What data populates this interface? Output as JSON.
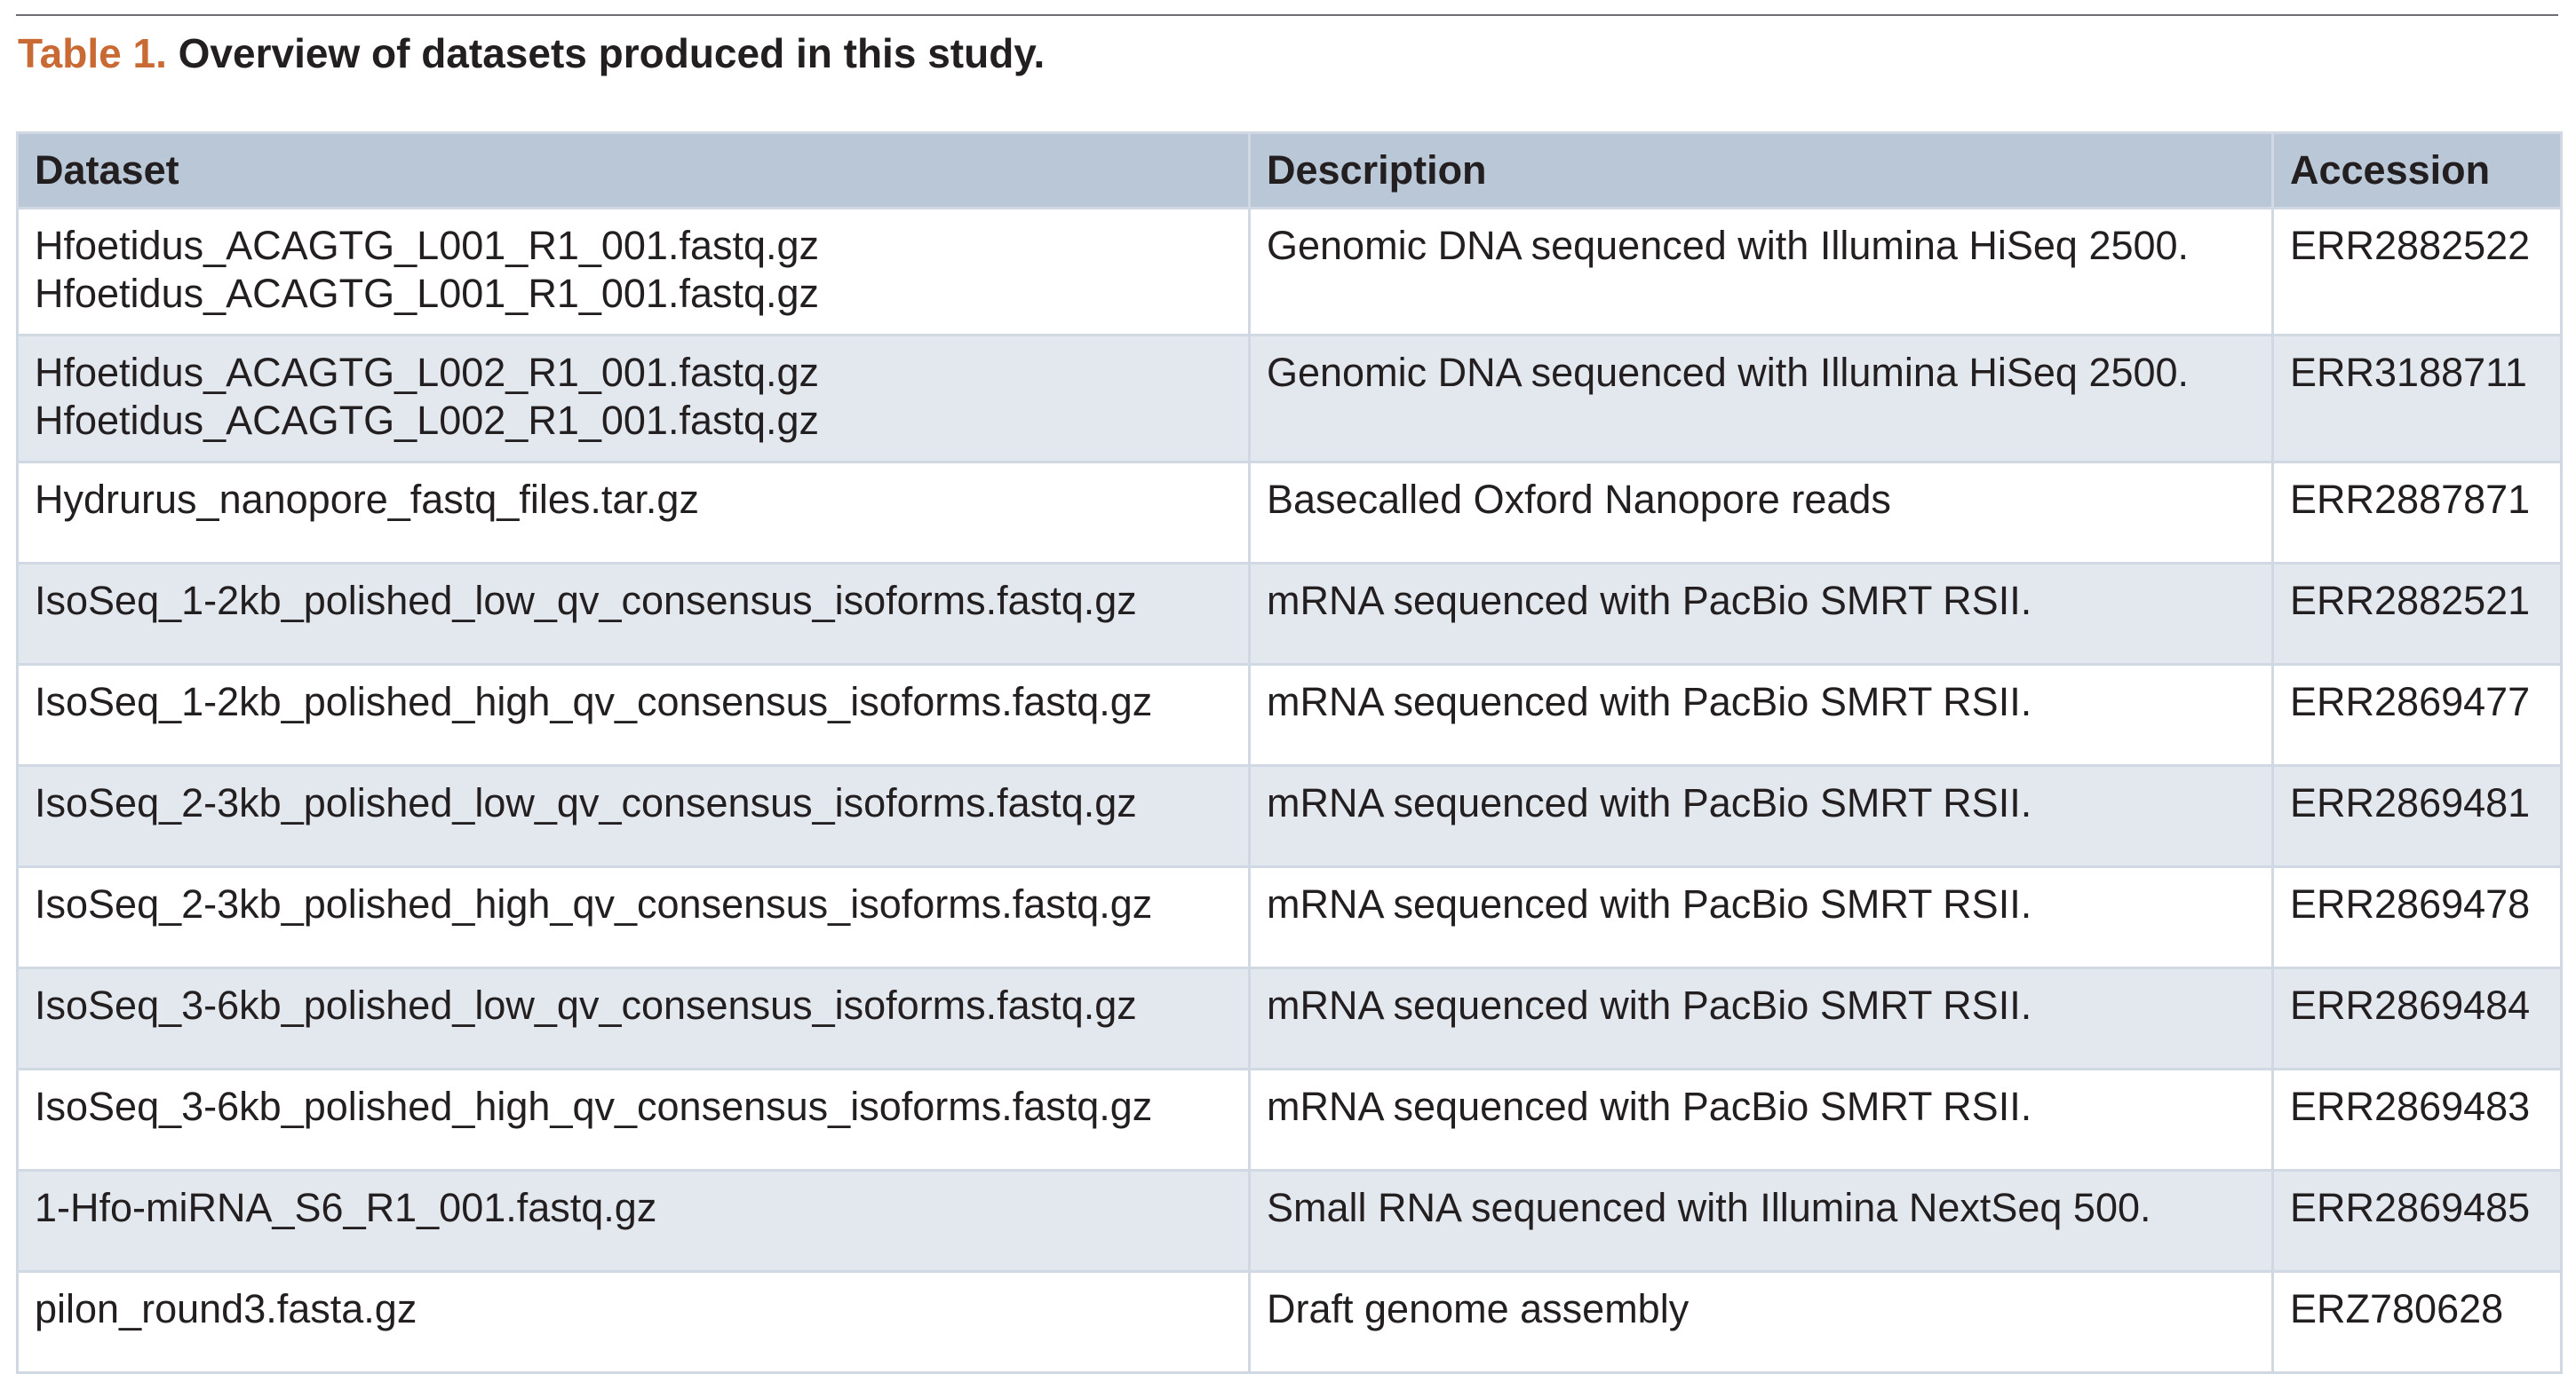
{
  "caption": {
    "label": "Table 1.",
    "title": "Overview of datasets produced in this study."
  },
  "table": {
    "headers": [
      "Dataset",
      "Description",
      "Accession"
    ],
    "rows": [
      {
        "dataset": [
          "Hfoetidus_ACAGTG_L001_R1_001.fastq.gz",
          "Hfoetidus_ACAGTG_L001_R1_001.fastq.gz"
        ],
        "description": "Genomic DNA sequenced with Illumina HiSeq 2500.",
        "accession": "ERR2882522"
      },
      {
        "dataset": [
          "Hfoetidus_ACAGTG_L002_R1_001.fastq.gz",
          "Hfoetidus_ACAGTG_L002_R1_001.fastq.gz"
        ],
        "description": "Genomic DNA sequenced with Illumina HiSeq 2500.",
        "accession": "ERR3188711"
      },
      {
        "dataset": [
          "Hydrurus_nanopore_fastq_files.tar.gz"
        ],
        "description": "Basecalled Oxford Nanopore reads",
        "accession": "ERR2887871"
      },
      {
        "dataset": [
          "IsoSeq_1-2kb_polished_low_qv_consensus_isoforms.fastq.gz"
        ],
        "description": "mRNA sequenced with PacBio SMRT RSII.",
        "accession": "ERR2882521"
      },
      {
        "dataset": [
          "IsoSeq_1-2kb_polished_high_qv_consensus_isoforms.fastq.gz"
        ],
        "description": "mRNA sequenced with PacBio SMRT RSII.",
        "accession": "ERR2869477"
      },
      {
        "dataset": [
          "IsoSeq_2-3kb_polished_low_qv_consensus_isoforms.fastq.gz"
        ],
        "description": "mRNA sequenced with PacBio SMRT RSII.",
        "accession": "ERR2869481"
      },
      {
        "dataset": [
          "IsoSeq_2-3kb_polished_high_qv_consensus_isoforms.fastq.gz"
        ],
        "description": "mRNA sequenced with PacBio SMRT RSII.",
        "accession": "ERR2869478"
      },
      {
        "dataset": [
          "IsoSeq_3-6kb_polished_low_qv_consensus_isoforms.fastq.gz"
        ],
        "description": "mRNA sequenced with PacBio SMRT RSII.",
        "accession": "ERR2869484"
      },
      {
        "dataset": [
          "IsoSeq_3-6kb_polished_high_qv_consensus_isoforms.fastq.gz"
        ],
        "description": "mRNA sequenced with PacBio SMRT RSII.",
        "accession": "ERR2869483"
      },
      {
        "dataset": [
          "1-Hfo-miRNA_S6_R1_001.fastq.gz"
        ],
        "description": "Small RNA sequenced with Illumina NextSeq 500.",
        "accession": "ERR2869485"
      },
      {
        "dataset": [
          "pilon_round3.fasta.gz"
        ],
        "description": "Draft genome assembly",
        "accession": "ERZ780628"
      }
    ]
  },
  "colors": {
    "caption_label": "#c96a35",
    "header_background": "#b9c7d6",
    "stripe_background": "#e3e8ee",
    "border": "#cfd8e3"
  }
}
